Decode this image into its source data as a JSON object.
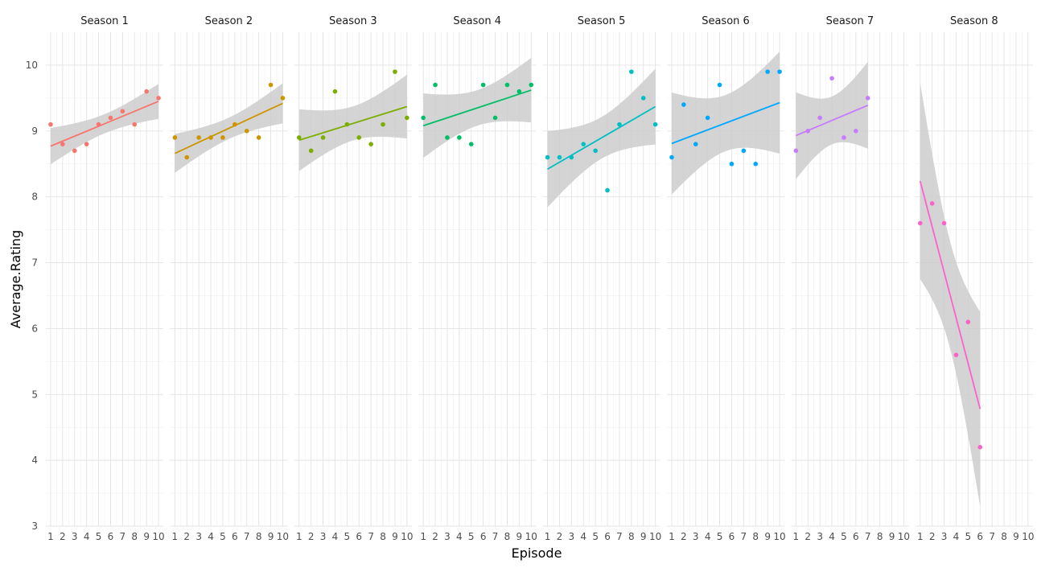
{
  "chart_data": {
    "type": "scatter",
    "layout": "facet",
    "xlabel": "Episode",
    "ylabel": "Average.Rating",
    "ylim": [
      3,
      10.5
    ],
    "yticks": [
      3,
      4,
      5,
      6,
      7,
      8,
      9,
      10
    ],
    "xticks": [
      1,
      2,
      3,
      4,
      5,
      6,
      7,
      8,
      9,
      10
    ],
    "grid": true,
    "legend": "none",
    "smooth": "linear fit with confidence band",
    "band_color": "#cccccc",
    "panels": [
      {
        "title": "Season 1",
        "color": "#f8766d",
        "x": [
          1,
          2,
          3,
          4,
          5,
          6,
          7,
          8,
          9,
          10
        ],
        "y": [
          9.1,
          8.8,
          8.7,
          8.8,
          9.1,
          9.2,
          9.3,
          9.1,
          9.6,
          9.5
        ],
        "fit": [
          8.77,
          9.45
        ],
        "band": [
          [
            8.5,
            9.05
          ],
          [
            9.2,
            9.73
          ]
        ]
      },
      {
        "title": "Season 2",
        "color": "#cd9600",
        "x": [
          1,
          2,
          3,
          4,
          5,
          6,
          7,
          8,
          9,
          10
        ],
        "y": [
          8.9,
          8.6,
          8.9,
          8.9,
          8.9,
          9.1,
          9.0,
          8.9,
          9.7,
          9.5
        ],
        "fit": [
          8.66,
          9.42
        ],
        "band": [
          [
            8.37,
            8.96
          ],
          [
            9.12,
            9.73
          ]
        ]
      },
      {
        "title": "Season 3",
        "color": "#7cae00",
        "x": [
          1,
          2,
          3,
          4,
          5,
          6,
          7,
          8,
          9,
          10
        ],
        "y": [
          8.9,
          8.7,
          8.9,
          9.6,
          9.1,
          8.9,
          8.8,
          9.1,
          9.9,
          9.2
        ],
        "fit": [
          8.86,
          9.37
        ],
        "band": [
          [
            8.39,
            9.33
          ],
          [
            8.88,
            9.85
          ]
        ]
      },
      {
        "title": "Season 4",
        "color": "#00be67",
        "x": [
          1,
          2,
          3,
          4,
          5,
          6,
          7,
          8,
          9,
          10
        ],
        "y": [
          9.2,
          9.7,
          8.9,
          8.9,
          8.8,
          9.7,
          9.2,
          9.7,
          9.6,
          9.7
        ],
        "fit": [
          9.08,
          9.62
        ],
        "band": [
          [
            8.6,
            9.58
          ],
          [
            9.12,
            10.1
          ]
        ]
      },
      {
        "title": "Season 5",
        "color": "#00bfc4",
        "x": [
          1,
          2,
          3,
          4,
          5,
          6,
          7,
          8,
          9,
          10
        ],
        "y": [
          8.6,
          8.6,
          8.6,
          8.8,
          8.7,
          8.1,
          9.1,
          9.9,
          9.5,
          9.1
        ],
        "fit": [
          8.42,
          9.37
        ],
        "band": [
          [
            7.84,
            9.0
          ],
          [
            8.8,
            9.95
          ]
        ]
      },
      {
        "title": "Season 6",
        "color": "#00a9ff",
        "x": [
          1,
          2,
          3,
          4,
          5,
          6,
          7,
          8,
          9,
          10
        ],
        "y": [
          8.6,
          9.4,
          8.8,
          9.2,
          9.7,
          8.5,
          8.7,
          8.5,
          9.9,
          9.9
        ],
        "fit": [
          8.81,
          9.43
        ],
        "band": [
          [
            8.04,
            9.59
          ],
          [
            8.66,
            10.21
          ]
        ]
      },
      {
        "title": "Season 7",
        "color": "#c77cff",
        "x": [
          1,
          2,
          3,
          4,
          5,
          6,
          7
        ],
        "y": [
          8.7,
          9.0,
          9.2,
          9.8,
          8.9,
          9.0,
          9.5
        ],
        "fit": [
          8.93,
          9.39
        ],
        "band": [
          [
            8.28,
            9.6
          ],
          [
            8.73,
            10.05
          ]
        ]
      },
      {
        "title": "Season 8",
        "color": "#ff61cc",
        "x": [
          1,
          2,
          3,
          4,
          5,
          6
        ],
        "y": [
          7.6,
          7.9,
          7.6,
          5.6,
          6.1,
          4.2
        ],
        "fit": [
          8.24,
          4.78
        ],
        "band": [
          [
            6.75,
            9.73
          ],
          [
            3.3,
            6.25
          ]
        ]
      }
    ]
  }
}
